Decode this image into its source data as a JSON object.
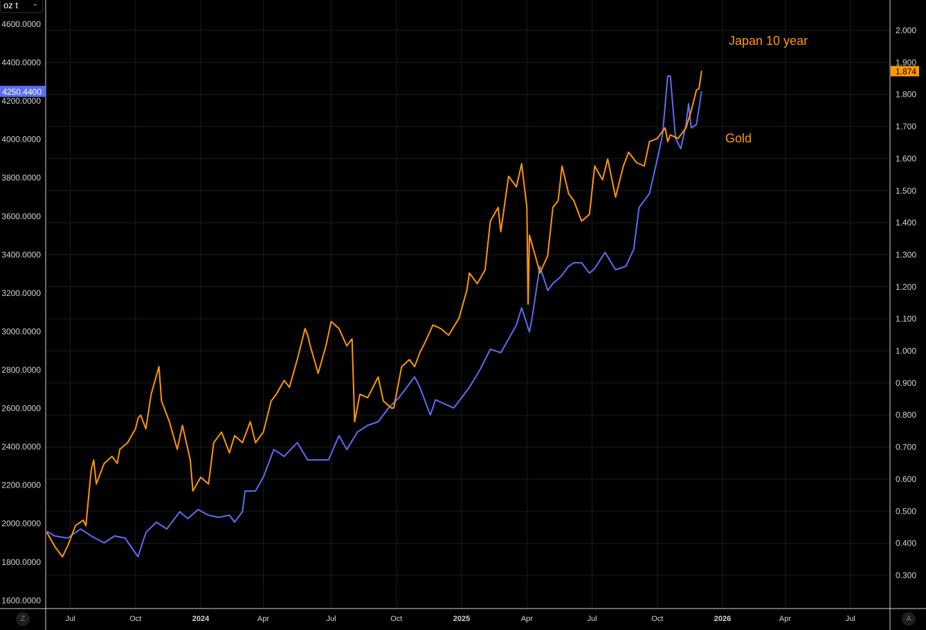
{
  "unit_selector": {
    "label": "oz t",
    "icon": "chevron-down-icon"
  },
  "bottom_left_button": "Z",
  "bottom_right_button": "A",
  "colors": {
    "gold": "#5b6ef5",
    "japan": "#ff9800",
    "grid": "#1c1c1c",
    "axis": "#d1d4dc"
  },
  "chart_data": {
    "type": "line",
    "title": "",
    "annotations": [
      {
        "text": "Japan 10 year",
        "color": "#ff9800"
      },
      {
        "text": "Gold",
        "color": "#ff9800"
      }
    ],
    "x_axis": {
      "unit": "year",
      "range": [
        2023.41,
        2026.65
      ],
      "ticks": [
        {
          "x": 2023.5,
          "label": "Jul",
          "bold": false
        },
        {
          "x": 2023.75,
          "label": "Oct",
          "bold": false
        },
        {
          "x": 2024.0,
          "label": "2024",
          "bold": true
        },
        {
          "x": 2024.24,
          "label": "Apr",
          "bold": false
        },
        {
          "x": 2024.5,
          "label": "Jul",
          "bold": false
        },
        {
          "x": 2024.75,
          "label": "Oct",
          "bold": false
        },
        {
          "x": 2025.0,
          "label": "2025",
          "bold": true
        },
        {
          "x": 2025.25,
          "label": "Apr",
          "bold": false
        },
        {
          "x": 2025.5,
          "label": "Jul",
          "bold": false
        },
        {
          "x": 2025.75,
          "label": "Oct",
          "bold": false
        },
        {
          "x": 2026.0,
          "label": "2026",
          "bold": true
        },
        {
          "x": 2026.24,
          "label": "Apr",
          "bold": false
        },
        {
          "x": 2026.49,
          "label": "Jul",
          "bold": false
        }
      ]
    },
    "left_axis": {
      "ylim": [
        1550,
        4700
      ],
      "ticks": [
        "4600.0000",
        "4400.0000",
        "4200.0000",
        "4000.0000",
        "3800.0000",
        "3600.0000",
        "3400.0000",
        "3200.0000",
        "3000.0000",
        "2800.0000",
        "2600.0000",
        "2400.0000",
        "2200.0000",
        "2000.0000",
        "1800.0000",
        "1600.0000"
      ],
      "last_value": "4250.4400"
    },
    "right_axis": {
      "ylim": [
        0.1,
        2.1
      ],
      "ticks": [
        "2.000",
        "1.900",
        "1.800",
        "1.700",
        "1.600",
        "1.500",
        "1.400",
        "1.300",
        "1.200",
        "1.100",
        "1.000",
        "0.900",
        "0.800",
        "0.700",
        "0.600",
        "0.500",
        "0.400",
        "0.300"
      ],
      "last_value": "1.874"
    },
    "series": [
      {
        "name": "Gold",
        "axis": "left",
        "color": "#5b6ef5",
        "points": [
          [
            2023.41,
            1961
          ],
          [
            2023.44,
            1936
          ],
          [
            2023.49,
            1925
          ],
          [
            2023.54,
            1972
          ],
          [
            2023.58,
            1936
          ],
          [
            2023.63,
            1900
          ],
          [
            2023.67,
            1936
          ],
          [
            2023.71,
            1925
          ],
          [
            2023.75,
            1846
          ],
          [
            2023.76,
            1828
          ],
          [
            2023.79,
            1954
          ],
          [
            2023.83,
            2008
          ],
          [
            2023.87,
            1972
          ],
          [
            2023.92,
            2062
          ],
          [
            2023.95,
            2026
          ],
          [
            2023.99,
            2073
          ],
          [
            2024.03,
            2044
          ],
          [
            2024.07,
            2033
          ],
          [
            2024.11,
            2044
          ],
          [
            2024.13,
            2008
          ],
          [
            2024.16,
            2062
          ],
          [
            2024.17,
            2170
          ],
          [
            2024.21,
            2170
          ],
          [
            2024.24,
            2242
          ],
          [
            2024.28,
            2386
          ],
          [
            2024.32,
            2350
          ],
          [
            2024.37,
            2422
          ],
          [
            2024.41,
            2332
          ],
          [
            2024.45,
            2332
          ],
          [
            2024.49,
            2332
          ],
          [
            2024.53,
            2458
          ],
          [
            2024.56,
            2386
          ],
          [
            2024.6,
            2476
          ],
          [
            2024.64,
            2512
          ],
          [
            2024.68,
            2530
          ],
          [
            2024.72,
            2602
          ],
          [
            2024.76,
            2656
          ],
          [
            2024.8,
            2728
          ],
          [
            2024.82,
            2764
          ],
          [
            2024.84,
            2710
          ],
          [
            2024.88,
            2566
          ],
          [
            2024.9,
            2645
          ],
          [
            2024.94,
            2620
          ],
          [
            2024.97,
            2602
          ],
          [
            2024.99,
            2638
          ],
          [
            2025.03,
            2710
          ],
          [
            2025.07,
            2800
          ],
          [
            2025.11,
            2908
          ],
          [
            2025.15,
            2890
          ],
          [
            2025.18,
            2962
          ],
          [
            2025.21,
            3034
          ],
          [
            2025.23,
            3124
          ],
          [
            2025.26,
            2998
          ],
          [
            2025.27,
            3070
          ],
          [
            2025.3,
            3340
          ],
          [
            2025.33,
            3214
          ],
          [
            2025.35,
            3250
          ],
          [
            2025.38,
            3286
          ],
          [
            2025.41,
            3340
          ],
          [
            2025.43,
            3358
          ],
          [
            2025.46,
            3358
          ],
          [
            2025.49,
            3304
          ],
          [
            2025.51,
            3329
          ],
          [
            2025.55,
            3412
          ],
          [
            2025.59,
            3322
          ],
          [
            2025.63,
            3340
          ],
          [
            2025.66,
            3430
          ],
          [
            2025.68,
            3646
          ],
          [
            2025.72,
            3718
          ],
          [
            2025.75,
            3898
          ],
          [
            2025.77,
            4024
          ],
          [
            2025.79,
            4330
          ],
          [
            2025.8,
            4330
          ],
          [
            2025.82,
            4006
          ],
          [
            2025.84,
            3952
          ],
          [
            2025.86,
            4078
          ],
          [
            2025.87,
            4186
          ],
          [
            2025.88,
            4060
          ],
          [
            2025.9,
            4078
          ],
          [
            2025.92,
            4250.44
          ]
        ]
      },
      {
        "name": "Japan 10 year",
        "axis": "right",
        "color": "#ff9800",
        "points": [
          [
            2023.41,
            0.434
          ],
          [
            2023.44,
            0.391
          ],
          [
            2023.47,
            0.358
          ],
          [
            2023.49,
            0.391
          ],
          [
            2023.52,
            0.455
          ],
          [
            2023.55,
            0.472
          ],
          [
            2023.56,
            0.455
          ],
          [
            2023.58,
            0.628
          ],
          [
            2023.59,
            0.66
          ],
          [
            2023.6,
            0.585
          ],
          [
            2023.63,
            0.649
          ],
          [
            2023.66,
            0.671
          ],
          [
            2023.68,
            0.649
          ],
          [
            2023.69,
            0.693
          ],
          [
            2023.72,
            0.714
          ],
          [
            2023.75,
            0.757
          ],
          [
            2023.76,
            0.79
          ],
          [
            2023.77,
            0.8
          ],
          [
            2023.79,
            0.757
          ],
          [
            2023.81,
            0.865
          ],
          [
            2023.84,
            0.951
          ],
          [
            2023.85,
            0.844
          ],
          [
            2023.88,
            0.779
          ],
          [
            2023.91,
            0.693
          ],
          [
            2023.93,
            0.768
          ],
          [
            2023.96,
            0.66
          ],
          [
            2023.97,
            0.563
          ],
          [
            2024.0,
            0.606
          ],
          [
            2024.03,
            0.585
          ],
          [
            2024.05,
            0.714
          ],
          [
            2024.08,
            0.747
          ],
          [
            2024.11,
            0.682
          ],
          [
            2024.13,
            0.736
          ],
          [
            2024.16,
            0.714
          ],
          [
            2024.19,
            0.779
          ],
          [
            2024.21,
            0.714
          ],
          [
            2024.24,
            0.747
          ],
          [
            2024.27,
            0.844
          ],
          [
            2024.29,
            0.865
          ],
          [
            2024.32,
            0.908
          ],
          [
            2024.34,
            0.887
          ],
          [
            2024.37,
            0.973
          ],
          [
            2024.4,
            1.07
          ],
          [
            2024.41,
            1.049
          ],
          [
            2024.42,
            1.016
          ],
          [
            2024.45,
            0.93
          ],
          [
            2024.48,
            1.016
          ],
          [
            2024.5,
            1.092
          ],
          [
            2024.53,
            1.07
          ],
          [
            2024.56,
            1.016
          ],
          [
            2024.58,
            1.038
          ],
          [
            2024.59,
            0.779
          ],
          [
            2024.61,
            0.865
          ],
          [
            2024.64,
            0.854
          ],
          [
            2024.68,
            0.919
          ],
          [
            2024.7,
            0.844
          ],
          [
            2024.73,
            0.822
          ],
          [
            2024.74,
            0.822
          ],
          [
            2024.77,
            0.951
          ],
          [
            2024.8,
            0.973
          ],
          [
            2024.82,
            0.951
          ],
          [
            2024.84,
            0.995
          ],
          [
            2024.86,
            1.027
          ],
          [
            2024.89,
            1.081
          ],
          [
            2024.92,
            1.07
          ],
          [
            2024.95,
            1.049
          ],
          [
            2024.99,
            1.102
          ],
          [
            2025.02,
            1.189
          ],
          [
            2025.03,
            1.243
          ],
          [
            2025.06,
            1.21
          ],
          [
            2025.09,
            1.253
          ],
          [
            2025.11,
            1.405
          ],
          [
            2025.14,
            1.448
          ],
          [
            2025.15,
            1.372
          ],
          [
            2025.18,
            1.545
          ],
          [
            2025.21,
            1.512
          ],
          [
            2025.23,
            1.584
          ],
          [
            2025.25,
            1.448
          ],
          [
            2025.255,
            1.146
          ],
          [
            2025.26,
            1.361
          ],
          [
            2025.29,
            1.275
          ],
          [
            2025.3,
            1.243
          ],
          [
            2025.33,
            1.297
          ],
          [
            2025.35,
            1.448
          ],
          [
            2025.37,
            1.469
          ],
          [
            2025.385,
            1.577
          ],
          [
            2025.41,
            1.491
          ],
          [
            2025.43,
            1.469
          ],
          [
            2025.46,
            1.405
          ],
          [
            2025.49,
            1.426
          ],
          [
            2025.51,
            1.577
          ],
          [
            2025.54,
            1.534
          ],
          [
            2025.56,
            1.599
          ],
          [
            2025.59,
            1.48
          ],
          [
            2025.62,
            1.577
          ],
          [
            2025.64,
            1.62
          ],
          [
            2025.67,
            1.588
          ],
          [
            2025.7,
            1.577
          ],
          [
            2025.72,
            1.653
          ],
          [
            2025.75,
            1.663
          ],
          [
            2025.78,
            1.696
          ],
          [
            2025.79,
            1.653
          ],
          [
            2025.8,
            1.674
          ],
          [
            2025.83,
            1.663
          ],
          [
            2025.86,
            1.696
          ],
          [
            2025.88,
            1.75
          ],
          [
            2025.9,
            1.814
          ],
          [
            2025.91,
            1.819
          ],
          [
            2025.92,
            1.874
          ]
        ]
      }
    ]
  }
}
